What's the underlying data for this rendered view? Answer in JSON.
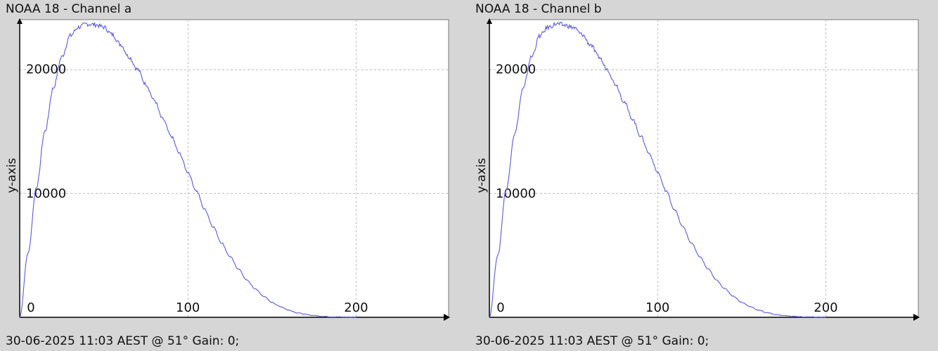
{
  "panels": [
    {
      "title": "NOAA 18 - Channel a",
      "footer": "30-06-2025 11:03 AEST @ 51° Gain: 0;"
    },
    {
      "title": "NOAA 18 - Channel b",
      "footer": "30-06-2025 11:03 AEST @ 51° Gain: 0;"
    }
  ],
  "colors": {
    "background": "#d6d6d6",
    "plot_area": "#ffffff",
    "line": "#5b5bd6",
    "axis": "#000000",
    "grid": "#bdbdbd"
  },
  "chart_data": [
    {
      "type": "line",
      "title": "NOAA 18 - Channel a",
      "xlabel": "",
      "ylabel": "y-axis",
      "xlim": [
        0,
        255
      ],
      "ylim": [
        0,
        24000
      ],
      "xticks": [
        0,
        100,
        200
      ],
      "yticks": [
        10000,
        20000
      ],
      "grid": true,
      "legend": "none",
      "series": [
        {
          "x": [
            0,
            5,
            10,
            15,
            20,
            25,
            30,
            35,
            40,
            45,
            50,
            55,
            60,
            65,
            70,
            75,
            80,
            85,
            90,
            95,
            100,
            105,
            110,
            115,
            120,
            125,
            130,
            135,
            140,
            145,
            150,
            155,
            160,
            165,
            170,
            175,
            180,
            185,
            190,
            195,
            200
          ],
          "y": [
            0,
            5200,
            10500,
            15000,
            18500,
            21000,
            22700,
            23400,
            23650,
            23600,
            23400,
            22800,
            22000,
            21000,
            20000,
            18800,
            17500,
            16000,
            14600,
            13200,
            11700,
            10200,
            8700,
            7300,
            6000,
            4900,
            3900,
            3000,
            2300,
            1700,
            1200,
            860,
            580,
            370,
            230,
            140,
            80,
            45,
            25,
            10,
            0
          ]
        }
      ]
    },
    {
      "type": "line",
      "title": "NOAA 18 - Channel b",
      "xlabel": "",
      "ylabel": "y-axis",
      "xlim": [
        0,
        255
      ],
      "ylim": [
        0,
        24000
      ],
      "xticks": [
        0,
        100,
        200
      ],
      "yticks": [
        10000,
        20000
      ],
      "grid": true,
      "legend": "none",
      "series": [
        {
          "x": [
            0,
            5,
            10,
            15,
            20,
            25,
            30,
            35,
            40,
            45,
            50,
            55,
            60,
            65,
            70,
            75,
            80,
            85,
            90,
            95,
            100,
            105,
            110,
            115,
            120,
            125,
            130,
            135,
            140,
            145,
            150,
            155,
            160,
            165,
            170,
            175,
            180,
            185,
            190,
            195,
            200
          ],
          "y": [
            0,
            5000,
            10300,
            14800,
            18400,
            21000,
            22700,
            23400,
            23650,
            23550,
            23350,
            22800,
            22000,
            21000,
            20000,
            18800,
            17400,
            16000,
            14600,
            13200,
            11700,
            10200,
            8700,
            7300,
            6000,
            4900,
            3900,
            3000,
            2300,
            1700,
            1200,
            860,
            580,
            370,
            230,
            140,
            80,
            45,
            25,
            10,
            0
          ]
        }
      ]
    }
  ]
}
